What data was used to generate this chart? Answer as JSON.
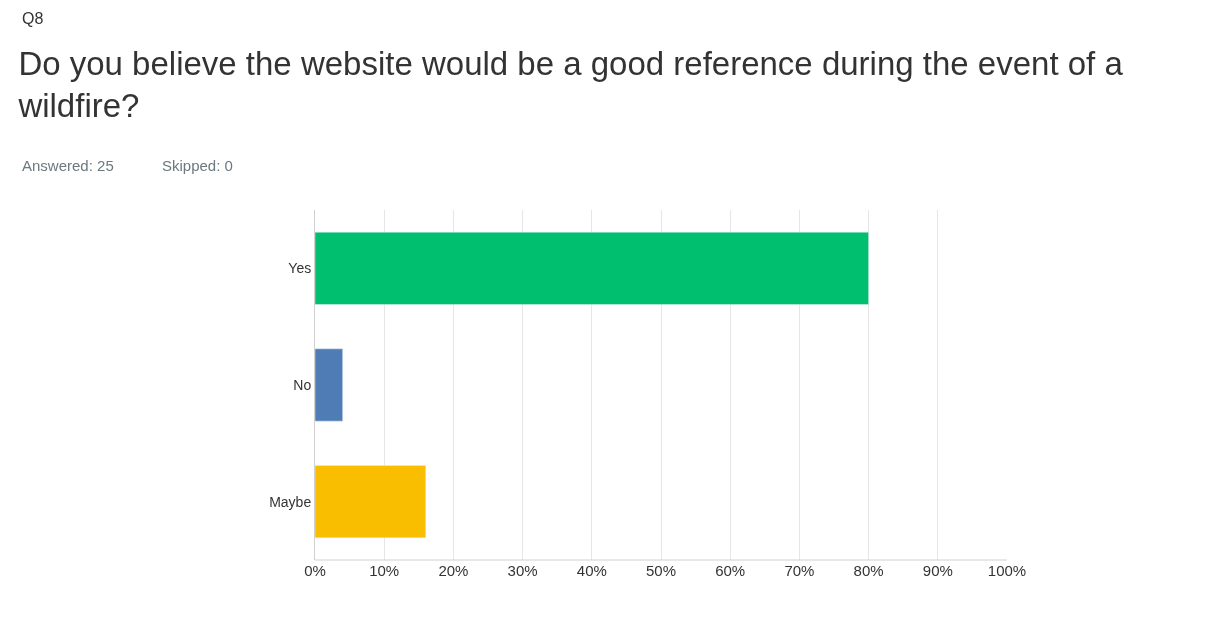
{
  "chart_data": {
    "type": "bar",
    "orientation": "horizontal",
    "title": "Do you believe the website would be a good reference during the event of a wildfire?",
    "annotations": [
      "Q8",
      "Answered: 25",
      "Skipped: 0"
    ],
    "categories": [
      "Yes",
      "No",
      "Maybe"
    ],
    "values": [
      80,
      4,
      16
    ],
    "colors": [
      "#00bf6f",
      "#507cb6",
      "#f9be00"
    ],
    "xlim": [
      0,
      100
    ],
    "xticks": [
      {
        "value": 0,
        "label": "0%"
      },
      {
        "value": 10,
        "label": "10%"
      },
      {
        "value": 20,
        "label": "20%"
      },
      {
        "value": 30,
        "label": "30%"
      },
      {
        "value": 40,
        "label": "40%"
      },
      {
        "value": 50,
        "label": "50%"
      },
      {
        "value": 60,
        "label": "60%"
      },
      {
        "value": 70,
        "label": "70%"
      },
      {
        "value": 80,
        "label": "80%"
      },
      {
        "value": 90,
        "label": "90%"
      },
      {
        "value": 100,
        "label": "100%"
      }
    ],
    "grid": "x",
    "legend": false
  }
}
